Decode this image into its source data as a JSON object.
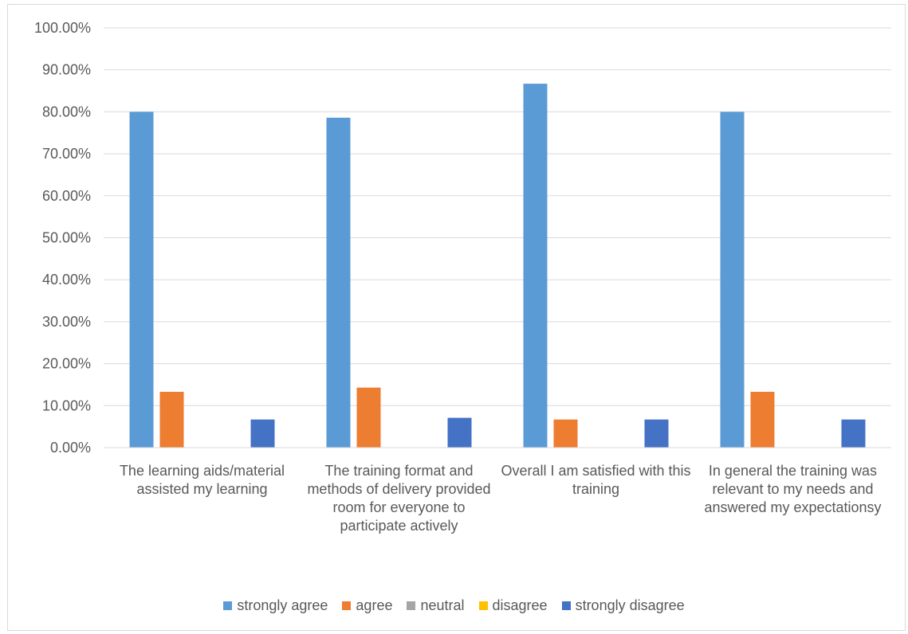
{
  "chart_data": {
    "type": "bar",
    "title": "",
    "xlabel": "",
    "ylabel": "",
    "ylim": [
      0,
      1.0
    ],
    "yticks": [
      "0.00%",
      "10.00%",
      "20.00%",
      "30.00%",
      "40.00%",
      "50.00%",
      "60.00%",
      "70.00%",
      "80.00%",
      "90.00%",
      "100.00%"
    ],
    "grid": true,
    "legend_position": "bottom",
    "categories": [
      "The learning aids/material assisted my learning",
      "The training format and methods of delivery provided room for everyone to participate actively",
      "Overall I am satisfied with this training",
      "In general the training was relevant to my needs and answered my expectationsy"
    ],
    "series": [
      {
        "name": "strongly agree",
        "color": "#5b9bd5",
        "values": [
          0.8,
          0.786,
          0.867,
          0.8
        ]
      },
      {
        "name": "agree",
        "color": "#ed7d31",
        "values": [
          0.133,
          0.143,
          0.067,
          0.133
        ]
      },
      {
        "name": "neutral",
        "color": "#a5a5a5",
        "values": [
          0,
          0,
          0,
          0
        ]
      },
      {
        "name": "disagree",
        "color": "#ffc000",
        "values": [
          0,
          0,
          0,
          0
        ]
      },
      {
        "name": "strongly disagree",
        "color": "#4472c4",
        "values": [
          0.067,
          0.071,
          0.067,
          0.067
        ]
      }
    ]
  }
}
